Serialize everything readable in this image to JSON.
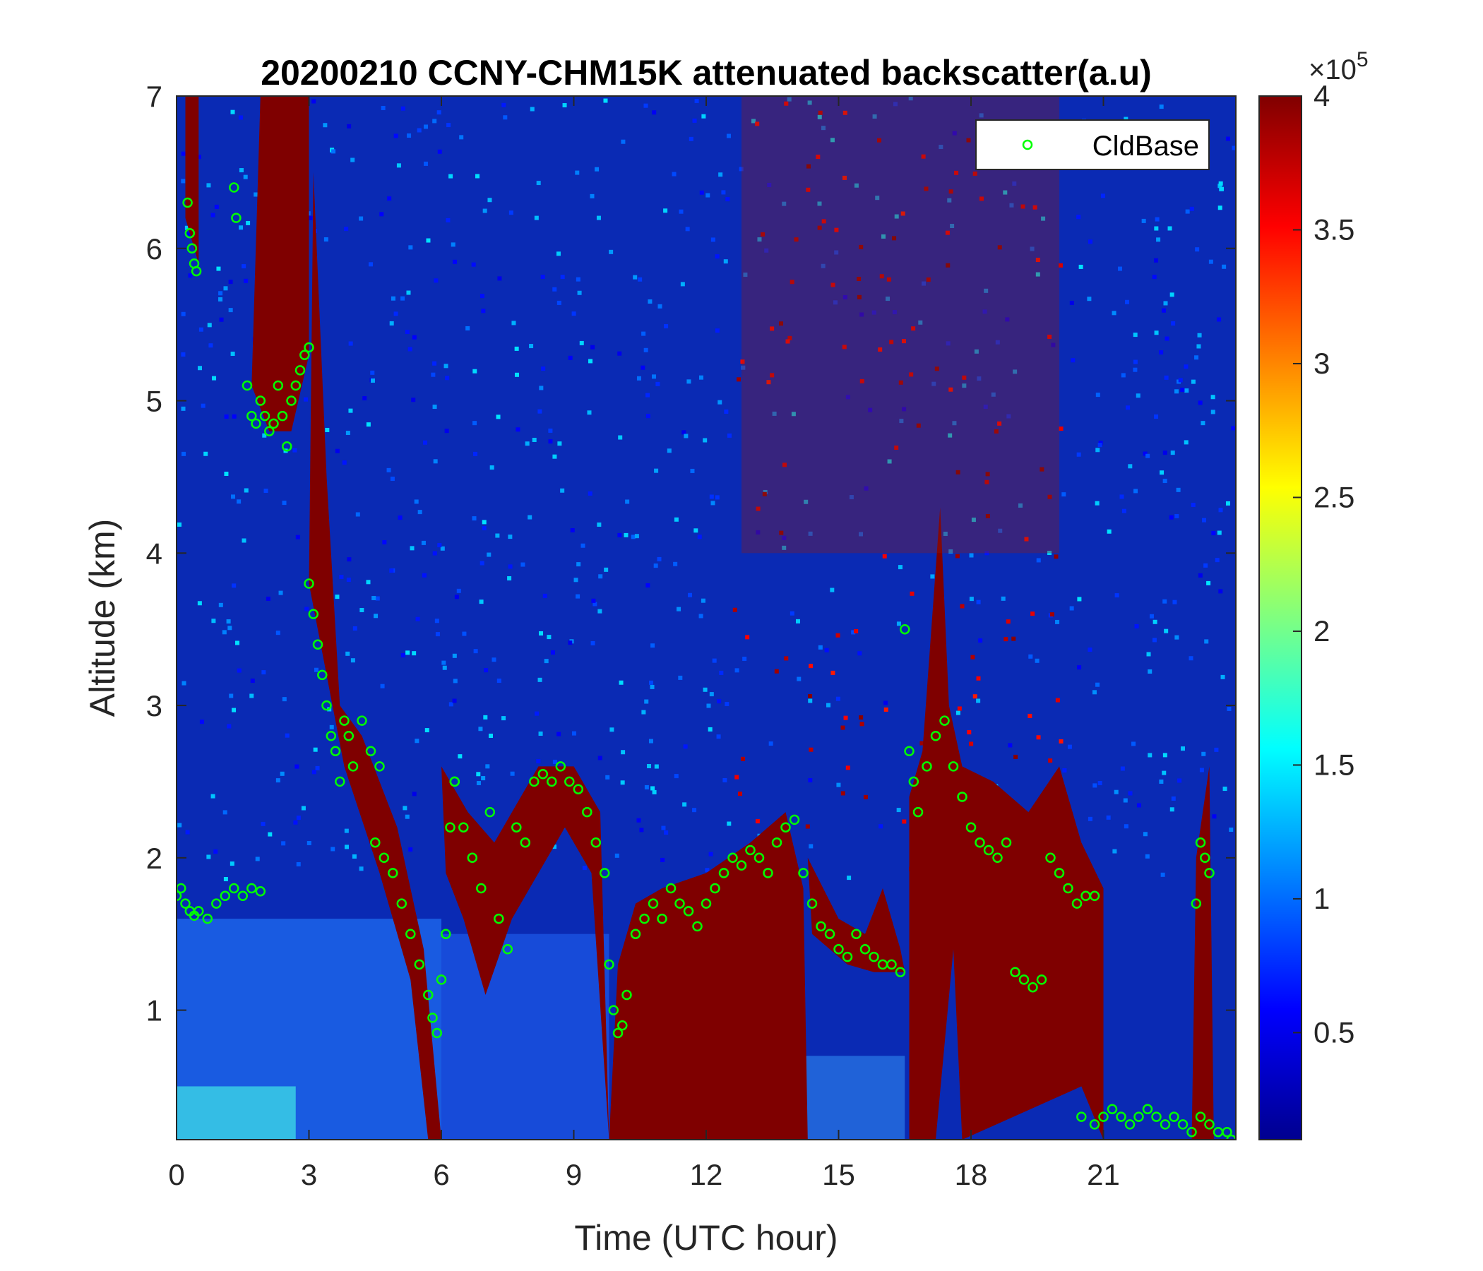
{
  "chart_data": {
    "type": "heatmap",
    "title": "20200210 CCNY-CHM15K attenuated backscatter(a.u)",
    "xlabel": "Time (UTC hour)",
    "ylabel": "Altitude (km)",
    "xlim": [
      0,
      24
    ],
    "ylim": [
      0.15,
      7
    ],
    "x_ticks": [
      "0",
      "3",
      "6",
      "9",
      "12",
      "15",
      "18",
      "21"
    ],
    "y_ticks": [
      "1",
      "2",
      "3",
      "4",
      "5",
      "6",
      "7"
    ],
    "colorbar": {
      "colormap": "jet",
      "range": [
        10000,
        400000
      ],
      "exponent_label": "×10",
      "exponent_power": "5",
      "ticks": [
        "0.5",
        "1",
        "1.5",
        "2",
        "2.5",
        "3",
        "3.5",
        "4"
      ]
    },
    "legend": {
      "entries": [
        "CldBase"
      ],
      "placement": "top-right"
    },
    "series": [
      {
        "name": "CldBase",
        "marker": "circle",
        "color": "#00ff00",
        "x": [
          0.0,
          0.1,
          0.2,
          0.3,
          0.4,
          0.5,
          0.7,
          0.9,
          1.1,
          1.3,
          1.5,
          1.7,
          1.9,
          0.25,
          0.3,
          0.35,
          0.4,
          0.45,
          1.3,
          1.35,
          1.6,
          1.7,
          1.8,
          1.9,
          2.0,
          2.1,
          2.2,
          2.3,
          2.4,
          2.5,
          2.6,
          2.7,
          2.8,
          2.9,
          3.0,
          3.0,
          3.1,
          3.2,
          3.3,
          3.4,
          3.5,
          3.6,
          3.7,
          3.8,
          3.9,
          4.0,
          4.2,
          4.4,
          4.6,
          4.5,
          4.7,
          4.9,
          5.1,
          5.3,
          5.5,
          5.7,
          5.8,
          5.9,
          6.0,
          6.1,
          6.2,
          6.3,
          6.3,
          6.5,
          6.7,
          6.9,
          7.1,
          7.3,
          7.5,
          7.7,
          7.9,
          8.1,
          8.3,
          8.5,
          8.7,
          8.9,
          9.1,
          9.3,
          9.5,
          9.7,
          9.8,
          9.9,
          10.0,
          10.1,
          10.2,
          10.4,
          10.6,
          10.8,
          11.0,
          11.2,
          11.4,
          11.6,
          11.8,
          12.0,
          12.2,
          12.4,
          12.6,
          12.8,
          13.0,
          13.2,
          13.4,
          13.6,
          13.8,
          14.0,
          14.2,
          14.4,
          14.6,
          14.8,
          15.0,
          15.2,
          15.4,
          15.6,
          15.8,
          16.0,
          16.2,
          16.4,
          16.5,
          16.6,
          16.7,
          16.8,
          17.0,
          17.2,
          17.4,
          17.6,
          17.8,
          18.0,
          18.2,
          18.4,
          18.6,
          18.8,
          19.0,
          19.2,
          19.4,
          19.6,
          19.8,
          20.0,
          20.2,
          20.4,
          20.6,
          20.8,
          20.5,
          20.8,
          21.0,
          21.2,
          21.4,
          21.6,
          21.8,
          22.0,
          22.2,
          22.4,
          22.6,
          22.8,
          23.0,
          23.2,
          23.4,
          23.6,
          23.8,
          23.9,
          23.1,
          23.2,
          23.3,
          23.4
        ],
        "y": [
          1.75,
          1.8,
          1.7,
          1.65,
          1.62,
          1.65,
          1.6,
          1.7,
          1.75,
          1.8,
          1.75,
          1.8,
          1.78,
          6.3,
          6.1,
          6.0,
          5.9,
          5.85,
          6.4,
          6.2,
          5.1,
          4.9,
          4.85,
          5.0,
          4.9,
          4.8,
          4.85,
          5.1,
          4.9,
          4.7,
          5.0,
          5.1,
          5.2,
          5.3,
          5.35,
          3.8,
          3.6,
          3.4,
          3.2,
          3.0,
          2.8,
          2.7,
          2.5,
          2.9,
          2.8,
          2.6,
          2.9,
          2.7,
          2.6,
          2.1,
          2.0,
          1.9,
          1.7,
          1.5,
          1.3,
          1.1,
          0.95,
          0.85,
          1.2,
          1.5,
          2.2,
          2.5,
          2.5,
          2.2,
          2.0,
          1.8,
          2.3,
          1.6,
          1.4,
          2.2,
          2.1,
          2.5,
          2.55,
          2.5,
          2.6,
          2.5,
          2.45,
          2.3,
          2.1,
          1.9,
          1.3,
          1.0,
          0.85,
          0.9,
          1.1,
          1.5,
          1.6,
          1.7,
          1.6,
          1.8,
          1.7,
          1.65,
          1.55,
          1.7,
          1.8,
          1.9,
          2.0,
          1.95,
          2.05,
          2.0,
          1.9,
          2.1,
          2.2,
          2.25,
          1.9,
          1.7,
          1.55,
          1.5,
          1.4,
          1.35,
          1.5,
          1.4,
          1.35,
          1.3,
          1.3,
          1.25,
          3.5,
          2.7,
          2.5,
          2.3,
          2.6,
          2.8,
          2.9,
          2.6,
          2.4,
          2.2,
          2.1,
          2.05,
          2.0,
          2.1,
          1.25,
          1.2,
          1.15,
          1.2,
          2.0,
          1.9,
          1.8,
          1.7,
          1.75,
          1.75,
          0.3,
          0.25,
          0.3,
          0.35,
          0.3,
          0.25,
          0.3,
          0.35,
          0.3,
          0.25,
          0.3,
          0.25,
          0.2,
          0.3,
          0.25,
          0.2,
          0.2,
          0.15,
          1.7,
          2.1,
          2.0,
          1.9
        ]
      }
    ]
  }
}
